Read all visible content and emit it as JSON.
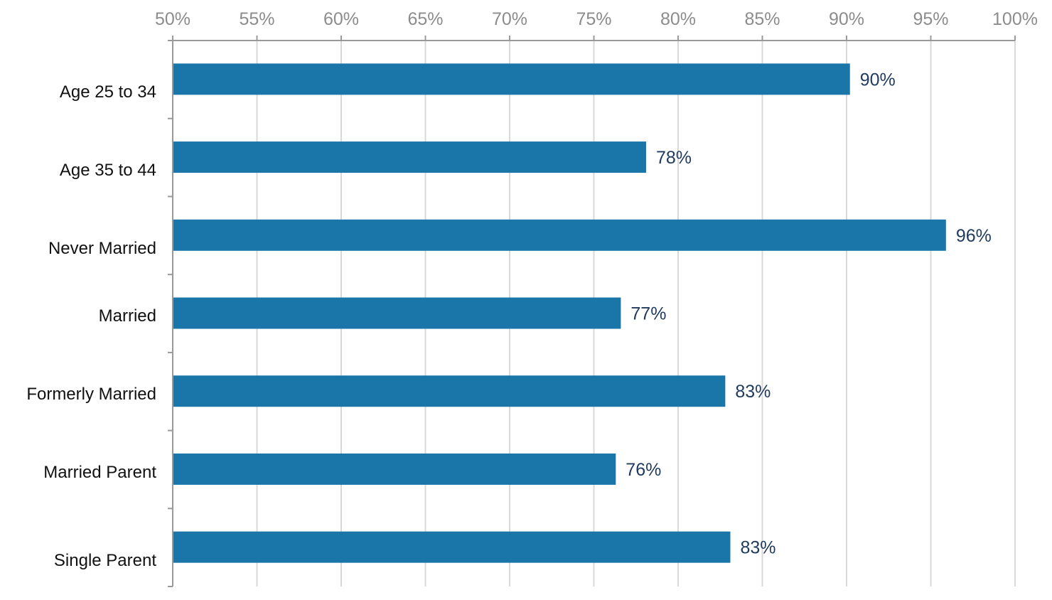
{
  "chart_data": {
    "type": "bar",
    "orientation": "horizontal",
    "title": "",
    "xlabel": "",
    "ylabel": "",
    "xlim": [
      50,
      100
    ],
    "x_ticks": [
      "50%",
      "55%",
      "60%",
      "65%",
      "70%",
      "75%",
      "80%",
      "85%",
      "90%",
      "95%",
      "100%"
    ],
    "x_tick_values": [
      50,
      55,
      60,
      65,
      70,
      75,
      80,
      85,
      90,
      95,
      100
    ],
    "axis_position": "top",
    "grid": true,
    "categories": [
      "Age 25 to 34",
      "Age 35 to 44",
      "Never Married",
      "Married",
      "Formerly Married",
      "Married Parent",
      "Single Parent"
    ],
    "values": [
      90.2,
      78.1,
      95.9,
      76.6,
      82.8,
      76.3,
      83.1
    ],
    "data_labels": [
      "90%",
      "78%",
      "96%",
      "77%",
      "83%",
      "76%",
      "83%"
    ],
    "colors": {
      "bar": "#1a76a8",
      "grid": "#d9d9d9",
      "axis": "#999999",
      "data_label": "#1f3a5f",
      "tick_label": "#8c8c8c"
    }
  }
}
